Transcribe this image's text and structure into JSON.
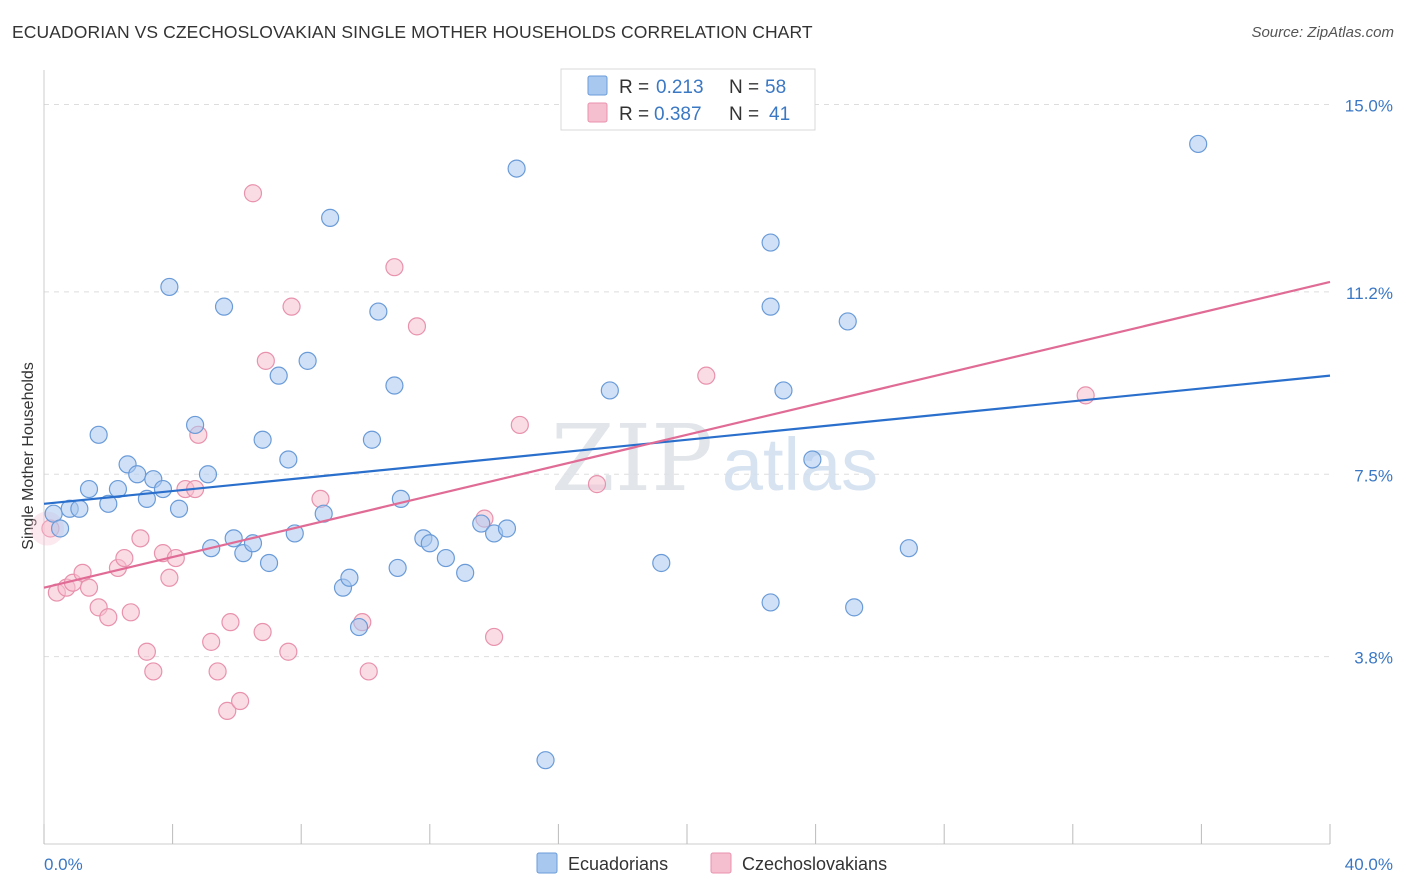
{
  "title": "ECUADORIAN VS CZECHOSLOVAKIAN SINGLE MOTHER HOUSEHOLDS CORRELATION CHART",
  "source": "Source: ZipAtlas.com",
  "watermark": {
    "zip": "ZIP",
    "atlas": "atlas"
  },
  "colors": {
    "blue_fill": "#a9c8f0",
    "blue_stroke": "#6a9bd8",
    "blue_line": "#2a6fcc",
    "pink_fill": "#f6bfd0",
    "pink_stroke": "#e892ad",
    "pink_line": "#e06c96",
    "grid": "#dddddd",
    "axis_text": "#3b78c4"
  },
  "legend": {
    "r_label": "R =",
    "n_label": "N =",
    "rows": [
      {
        "series": "Ecuadorians",
        "r": "0.213",
        "n": "58"
      },
      {
        "series": "Czechoslovakians",
        "r": "0.387",
        "n": "41"
      }
    ]
  },
  "chart_data": {
    "type": "scatter",
    "title": "ECUADORIAN VS CZECHOSLOVAKIAN SINGLE MOTHER HOUSEHOLDS CORRELATION CHART",
    "xlabel": "",
    "ylabel": "Single Mother Households",
    "xlim": [
      0,
      40
    ],
    "ylim": [
      0,
      15.7
    ],
    "x_tick_labels": [
      {
        "value": 0,
        "label": "0.0%"
      },
      {
        "value": 40,
        "label": "40.0%"
      }
    ],
    "y_ticks": [
      {
        "value": 3.8,
        "label": "3.8%"
      },
      {
        "value": 7.5,
        "label": "7.5%"
      },
      {
        "value": 11.2,
        "label": "11.2%"
      },
      {
        "value": 15.0,
        "label": "15.0%"
      }
    ],
    "series": [
      {
        "name": "Ecuadorians",
        "color": "blue",
        "trend": {
          "x": [
            0,
            40
          ],
          "y": [
            6.9,
            9.5
          ]
        },
        "points": [
          [
            0.3,
            6.7
          ],
          [
            0.5,
            6.4
          ],
          [
            0.8,
            6.8
          ],
          [
            1.1,
            6.8
          ],
          [
            1.4,
            7.2
          ],
          [
            1.7,
            8.3
          ],
          [
            2.0,
            6.9
          ],
          [
            2.3,
            7.2
          ],
          [
            2.6,
            7.7
          ],
          [
            2.9,
            7.5
          ],
          [
            3.2,
            7.0
          ],
          [
            3.4,
            7.4
          ],
          [
            3.7,
            7.2
          ],
          [
            3.9,
            11.3
          ],
          [
            4.2,
            6.8
          ],
          [
            4.7,
            8.5
          ],
          [
            5.1,
            7.5
          ],
          [
            5.2,
            6.0
          ],
          [
            5.6,
            10.9
          ],
          [
            5.9,
            6.2
          ],
          [
            6.2,
            5.9
          ],
          [
            6.5,
            6.1
          ],
          [
            6.8,
            8.2
          ],
          [
            7.0,
            5.7
          ],
          [
            7.3,
            9.5
          ],
          [
            7.6,
            7.8
          ],
          [
            7.8,
            6.3
          ],
          [
            8.2,
            9.8
          ],
          [
            8.7,
            6.7
          ],
          [
            8.9,
            12.7
          ],
          [
            9.3,
            5.2
          ],
          [
            9.5,
            5.4
          ],
          [
            9.8,
            4.4
          ],
          [
            10.2,
            8.2
          ],
          [
            10.4,
            10.8
          ],
          [
            10.9,
            9.3
          ],
          [
            11.0,
            5.6
          ],
          [
            11.1,
            7.0
          ],
          [
            11.8,
            6.2
          ],
          [
            12.0,
            6.1
          ],
          [
            12.5,
            5.8
          ],
          [
            13.1,
            5.5
          ],
          [
            13.6,
            6.5
          ],
          [
            14.0,
            6.3
          ],
          [
            14.4,
            6.4
          ],
          [
            14.7,
            13.7
          ],
          [
            15.6,
            1.7
          ],
          [
            17.6,
            9.2
          ],
          [
            19.2,
            5.7
          ],
          [
            22.6,
            12.2
          ],
          [
            22.6,
            4.9
          ],
          [
            22.6,
            10.9
          ],
          [
            23.0,
            9.2
          ],
          [
            23.9,
            7.8
          ],
          [
            25.0,
            10.6
          ],
          [
            25.2,
            4.8
          ],
          [
            26.9,
            6.0
          ],
          [
            35.9,
            14.2
          ]
        ]
      },
      {
        "name": "Czechoslovakians",
        "color": "pink",
        "trend": {
          "x": [
            0,
            40
          ],
          "y": [
            5.2,
            11.4
          ]
        },
        "points": [
          [
            0.2,
            6.4
          ],
          [
            0.4,
            5.1
          ],
          [
            0.7,
            5.2
          ],
          [
            0.9,
            5.3
          ],
          [
            1.2,
            5.5
          ],
          [
            1.4,
            5.2
          ],
          [
            1.7,
            4.8
          ],
          [
            2.0,
            4.6
          ],
          [
            2.3,
            5.6
          ],
          [
            2.5,
            5.8
          ],
          [
            2.7,
            4.7
          ],
          [
            3.0,
            6.2
          ],
          [
            3.2,
            3.9
          ],
          [
            3.4,
            3.5
          ],
          [
            3.7,
            5.9
          ],
          [
            3.9,
            5.4
          ],
          [
            4.1,
            5.8
          ],
          [
            4.4,
            7.2
          ],
          [
            4.8,
            8.3
          ],
          [
            4.7,
            7.2
          ],
          [
            5.2,
            4.1
          ],
          [
            5.4,
            3.5
          ],
          [
            5.7,
            2.7
          ],
          [
            5.8,
            4.5
          ],
          [
            6.1,
            2.9
          ],
          [
            6.5,
            13.2
          ],
          [
            6.8,
            4.3
          ],
          [
            6.9,
            9.8
          ],
          [
            7.6,
            3.9
          ],
          [
            7.7,
            10.9
          ],
          [
            8.6,
            7.0
          ],
          [
            9.9,
            4.5
          ],
          [
            10.1,
            3.5
          ],
          [
            10.9,
            11.7
          ],
          [
            11.6,
            10.5
          ],
          [
            13.7,
            6.6
          ],
          [
            14.0,
            4.2
          ],
          [
            14.8,
            8.5
          ],
          [
            17.2,
            7.3
          ],
          [
            20.6,
            9.5
          ],
          [
            32.4,
            9.1
          ]
        ]
      }
    ]
  }
}
